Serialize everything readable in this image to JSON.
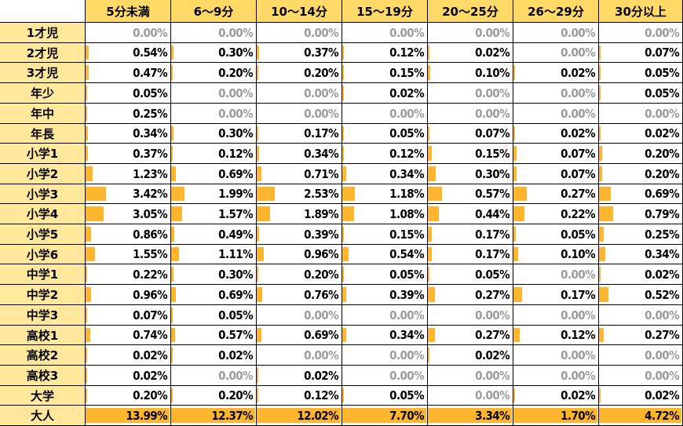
{
  "chart_data": {
    "type": "table",
    "columns": [
      "5分未満",
      "6～9分",
      "10～14分",
      "15～19分",
      "20～25分",
      "26～29分",
      "30分以上"
    ],
    "rows": [
      "1才児",
      "2才児",
      "3才児",
      "年少",
      "年中",
      "年長",
      "小学1",
      "小学2",
      "小学3",
      "小学4",
      "小学5",
      "小学6",
      "中学1",
      "中学2",
      "中学3",
      "高校1",
      "高校2",
      "高校3",
      "大学",
      "大人"
    ],
    "values": [
      [
        0.0,
        0.0,
        0.0,
        0.0,
        0.0,
        0.0,
        0.0
      ],
      [
        0.54,
        0.3,
        0.37,
        0.12,
        0.02,
        0.0,
        0.07
      ],
      [
        0.47,
        0.2,
        0.2,
        0.15,
        0.1,
        0.02,
        0.05
      ],
      [
        0.05,
        0.0,
        0.0,
        0.02,
        0.0,
        0.0,
        0.05
      ],
      [
        0.25,
        0.0,
        0.0,
        0.0,
        0.0,
        0.0,
        0.0
      ],
      [
        0.34,
        0.3,
        0.17,
        0.05,
        0.07,
        0.02,
        0.02
      ],
      [
        0.37,
        0.12,
        0.34,
        0.12,
        0.15,
        0.07,
        0.2
      ],
      [
        1.23,
        0.69,
        0.71,
        0.34,
        0.3,
        0.07,
        0.2
      ],
      [
        3.42,
        1.99,
        2.53,
        1.18,
        0.57,
        0.27,
        0.69
      ],
      [
        3.05,
        1.57,
        1.89,
        1.08,
        0.44,
        0.22,
        0.79
      ],
      [
        0.86,
        0.49,
        0.39,
        0.15,
        0.17,
        0.05,
        0.25
      ],
      [
        1.55,
        1.11,
        0.96,
        0.54,
        0.17,
        0.1,
        0.34
      ],
      [
        0.22,
        0.3,
        0.2,
        0.05,
        0.05,
        0.0,
        0.02
      ],
      [
        0.96,
        0.69,
        0.76,
        0.39,
        0.27,
        0.17,
        0.52
      ],
      [
        0.07,
        0.05,
        0.0,
        0.0,
        0.0,
        0.0,
        0.0
      ],
      [
        0.74,
        0.57,
        0.69,
        0.34,
        0.27,
        0.12,
        0.27
      ],
      [
        0.02,
        0.02,
        0.0,
        0.0,
        0.02,
        0.0,
        0.0
      ],
      [
        0.02,
        0.0,
        0.02,
        0.0,
        0.0,
        0.0,
        0.0
      ],
      [
        0.2,
        0.2,
        0.12,
        0.05,
        0.0,
        0.02,
        0.02
      ],
      [
        13.99,
        12.37,
        12.02,
        7.7,
        3.34,
        1.7,
        4.72
      ]
    ],
    "labels": [
      [
        "0.00%",
        "0.00%",
        "0.00%",
        "0.00%",
        "0.00%",
        "0.00%",
        "0.00%"
      ],
      [
        "0.54%",
        "0.30%",
        "0.37%",
        "0.12%",
        "0.02%",
        "0.00%",
        "0.07%"
      ],
      [
        "0.47%",
        "0.20%",
        "0.20%",
        "0.15%",
        "0.10%",
        "0.02%",
        "0.05%"
      ],
      [
        "0.05%",
        "0.00%",
        "0.00%",
        "0.02%",
        "0.00%",
        "0.00%",
        "0.05%"
      ],
      [
        "0.25%",
        "0.00%",
        "0.00%",
        "0.00%",
        "0.00%",
        "0.00%",
        "0.00%"
      ],
      [
        "0.34%",
        "0.30%",
        "0.17%",
        "0.05%",
        "0.07%",
        "0.02%",
        "0.02%"
      ],
      [
        "0.37%",
        "0.12%",
        "0.34%",
        "0.12%",
        "0.15%",
        "0.07%",
        "0.20%"
      ],
      [
        "1.23%",
        "0.69%",
        "0.71%",
        "0.34%",
        "0.30%",
        "0.07%",
        "0.20%"
      ],
      [
        "3.42%",
        "1.99%",
        "2.53%",
        "1.18%",
        "0.57%",
        "0.27%",
        "0.69%"
      ],
      [
        "3.05%",
        "1.57%",
        "1.89%",
        "1.08%",
        "0.44%",
        "0.22%",
        "0.79%"
      ],
      [
        "0.86%",
        "0.49%",
        "0.39%",
        "0.15%",
        "0.17%",
        "0.05%",
        "0.25%"
      ],
      [
        "1.55%",
        "1.11%",
        "0.96%",
        "0.54%",
        "0.17%",
        "0.10%",
        "0.34%"
      ],
      [
        "0.22%",
        "0.30%",
        "0.20%",
        "0.05%",
        "0.05%",
        "0.00%",
        "0.02%"
      ],
      [
        "0.96%",
        "0.69%",
        "0.76%",
        "0.39%",
        "0.27%",
        "0.17%",
        "0.52%"
      ],
      [
        "0.07%",
        "0.05%",
        "0.00%",
        "0.00%",
        "0.00%",
        "0.00%",
        "0.00%"
      ],
      [
        "0.74%",
        "0.57%",
        "0.69%",
        "0.34%",
        "0.27%",
        "0.12%",
        "0.27%"
      ],
      [
        "0.02%",
        "0.02%",
        "0.00%",
        "0.00%",
        "0.02%",
        "0.00%",
        "0.00%"
      ],
      [
        "0.02%",
        "0.00%",
        "0.02%",
        "0.00%",
        "0.00%",
        "0.00%",
        "0.00%"
      ],
      [
        "0.20%",
        "0.20%",
        "0.12%",
        "0.05%",
        "0.00%",
        "0.02%",
        "0.02%"
      ],
      [
        "13.99%",
        "12.37%",
        "12.02%",
        "7.70%",
        "3.34%",
        "1.70%",
        "4.72%"
      ]
    ],
    "title": "",
    "xlabel": "",
    "ylabel": ""
  },
  "colors": {
    "header_bg": "#ffd966",
    "row_label_bg": "#ffe79c",
    "bar": "#ffb52e",
    "zero_text": "#9a9a9a",
    "text": "#000000"
  }
}
